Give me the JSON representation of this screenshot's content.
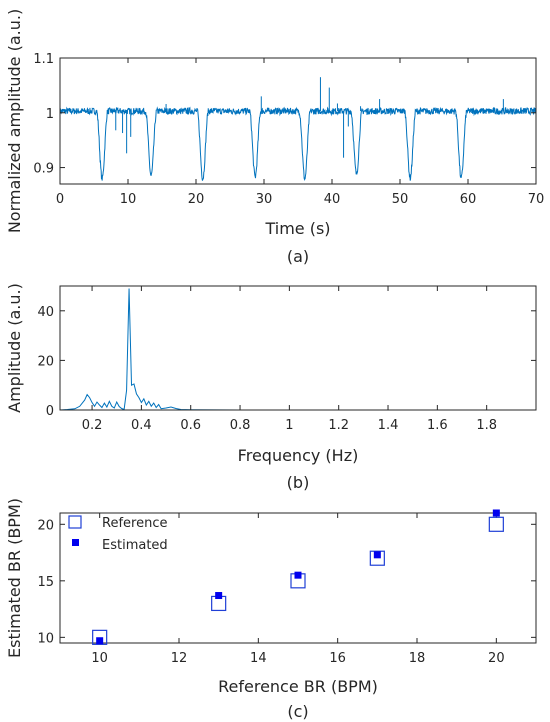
{
  "colors": {
    "signal": "#0072BD",
    "spectrum": "#0072BD",
    "reference_marker": "#1f3fd6",
    "estimated_marker": "#0000ee",
    "axis": "#262626"
  },
  "chart_data": [
    {
      "id": "a",
      "type": "line",
      "caption": "(a)",
      "xlabel": "Time (s)",
      "ylabel": "Normalized amplitude (a.u.)",
      "xlim": [
        0,
        70
      ],
      "ylim": [
        0.87,
        1.1
      ],
      "xticks": [
        0,
        10,
        20,
        30,
        40,
        50,
        60,
        70
      ],
      "yticks": [
        0.9,
        1,
        1.1
      ],
      "ytick_labels": [
        "0.9",
        "1",
        "1.1"
      ],
      "grid": false,
      "series": [
        {
          "baseline": 1.003,
          "dips": [
            {
              "t": 6.2,
              "min": 0.88
            },
            {
              "t": 13.4,
              "min": 0.885
            },
            {
              "t": 21.0,
              "min": 0.88
            },
            {
              "t": 28.7,
              "min": 0.883
            },
            {
              "t": 36.0,
              "min": 0.88
            },
            {
              "t": 43.6,
              "min": 0.888
            },
            {
              "t": 51.5,
              "min": 0.881
            },
            {
              "t": 59.0,
              "min": 0.88
            }
          ],
          "spikes": [
            {
              "t": 8.2,
              "v": 0.968
            },
            {
              "t": 9.2,
              "v": 0.963
            },
            {
              "t": 9.8,
              "v": 0.926
            },
            {
              "t": 10.4,
              "v": 0.956
            },
            {
              "t": 15.6,
              "v": 1.016
            },
            {
              "t": 29.6,
              "v": 1.03
            },
            {
              "t": 38.3,
              "v": 1.065
            },
            {
              "t": 39.6,
              "v": 1.046
            },
            {
              "t": 40.8,
              "v": 1.017
            },
            {
              "t": 41.7,
              "v": 0.918
            },
            {
              "t": 42.4,
              "v": 0.975
            },
            {
              "t": 44.2,
              "v": 1.012
            },
            {
              "t": 47.0,
              "v": 1.025
            },
            {
              "t": 65.2,
              "v": 1.025
            }
          ]
        }
      ]
    },
    {
      "id": "b",
      "type": "line",
      "caption": "(b)",
      "xlabel": "Frequency (Hz)",
      "ylabel": "Amplitude (a.u.)",
      "xlim": [
        0.07,
        2.0
      ],
      "ylim": [
        0,
        50
      ],
      "xticks": [
        0.2,
        0.4,
        0.6,
        0.8,
        1,
        1.2,
        1.4,
        1.6,
        1.8
      ],
      "xtick_labels": [
        "0.2",
        "0.4",
        "0.6",
        "0.8",
        "1",
        "1.2",
        "1.4",
        "1.6",
        "1.8"
      ],
      "yticks": [
        0,
        20,
        40
      ],
      "grid": false,
      "series": [
        {
          "x": [
            0.07,
            0.1,
            0.13,
            0.15,
            0.17,
            0.18,
            0.19,
            0.2,
            0.21,
            0.22,
            0.23,
            0.24,
            0.25,
            0.26,
            0.27,
            0.28,
            0.29,
            0.3,
            0.31,
            0.32,
            0.33,
            0.34,
            0.35,
            0.36,
            0.37,
            0.38,
            0.39,
            0.4,
            0.41,
            0.42,
            0.43,
            0.44,
            0.45,
            0.46,
            0.47,
            0.48,
            0.5,
            0.52,
            0.54,
            0.56,
            0.6,
            0.8,
            1.0,
            1.2,
            1.4,
            1.6,
            1.8,
            2.0
          ],
          "y": [
            0,
            0.2,
            0.5,
            1.5,
            4.0,
            6.2,
            5.0,
            3.0,
            1.5,
            3.2,
            2.0,
            1.0,
            2.8,
            1.2,
            3.5,
            1.5,
            0.8,
            3.2,
            1.4,
            0.6,
            0.2,
            8.0,
            49.0,
            10.0,
            10.5,
            6.5,
            5.0,
            3.0,
            4.5,
            2.0,
            3.5,
            1.5,
            2.8,
            1.0,
            2.2,
            0.5,
            0.8,
            1.2,
            0.6,
            0.2,
            0.1,
            0,
            0,
            0,
            0,
            0,
            0,
            0
          ]
        }
      ]
    },
    {
      "id": "c",
      "type": "scatter",
      "caption": "(c)",
      "xlabel": "Reference BR (BPM)",
      "ylabel": "Estimated BR (BPM)",
      "xlim": [
        9,
        21
      ],
      "ylim": [
        9.5,
        21
      ],
      "xticks": [
        10,
        12,
        14,
        16,
        18,
        20
      ],
      "yticks": [
        10,
        15,
        20
      ],
      "grid": false,
      "legend": "top-left",
      "series": [
        {
          "name": "Reference",
          "marker": "open-square",
          "x": [
            10,
            13,
            15,
            17,
            20
          ],
          "y": [
            10,
            13,
            15,
            17,
            20
          ]
        },
        {
          "name": "Estimated",
          "marker": "filled-square",
          "x": [
            10,
            13,
            15,
            17,
            20
          ],
          "y": [
            9.7,
            13.7,
            15.5,
            17.3,
            21.0
          ]
        }
      ]
    }
  ]
}
